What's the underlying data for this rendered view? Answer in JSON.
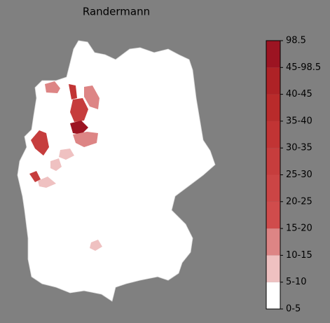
{
  "title": "Randermann",
  "legend": {
    "labels": [
      "0-5",
      "5-10",
      "10-15",
      "15-20",
      "20-25",
      "25-30",
      "30-35",
      "35-40",
      "40-45",
      "45-98.5",
      "98.5"
    ],
    "colors": [
      "#ffffff",
      "#efc1c1",
      "#dd8585",
      "#d04c4c",
      "#cb4545",
      "#c63d3d",
      "#c13434",
      "#b92b2b",
      "#ae2226",
      "#9c1422"
    ]
  }
}
